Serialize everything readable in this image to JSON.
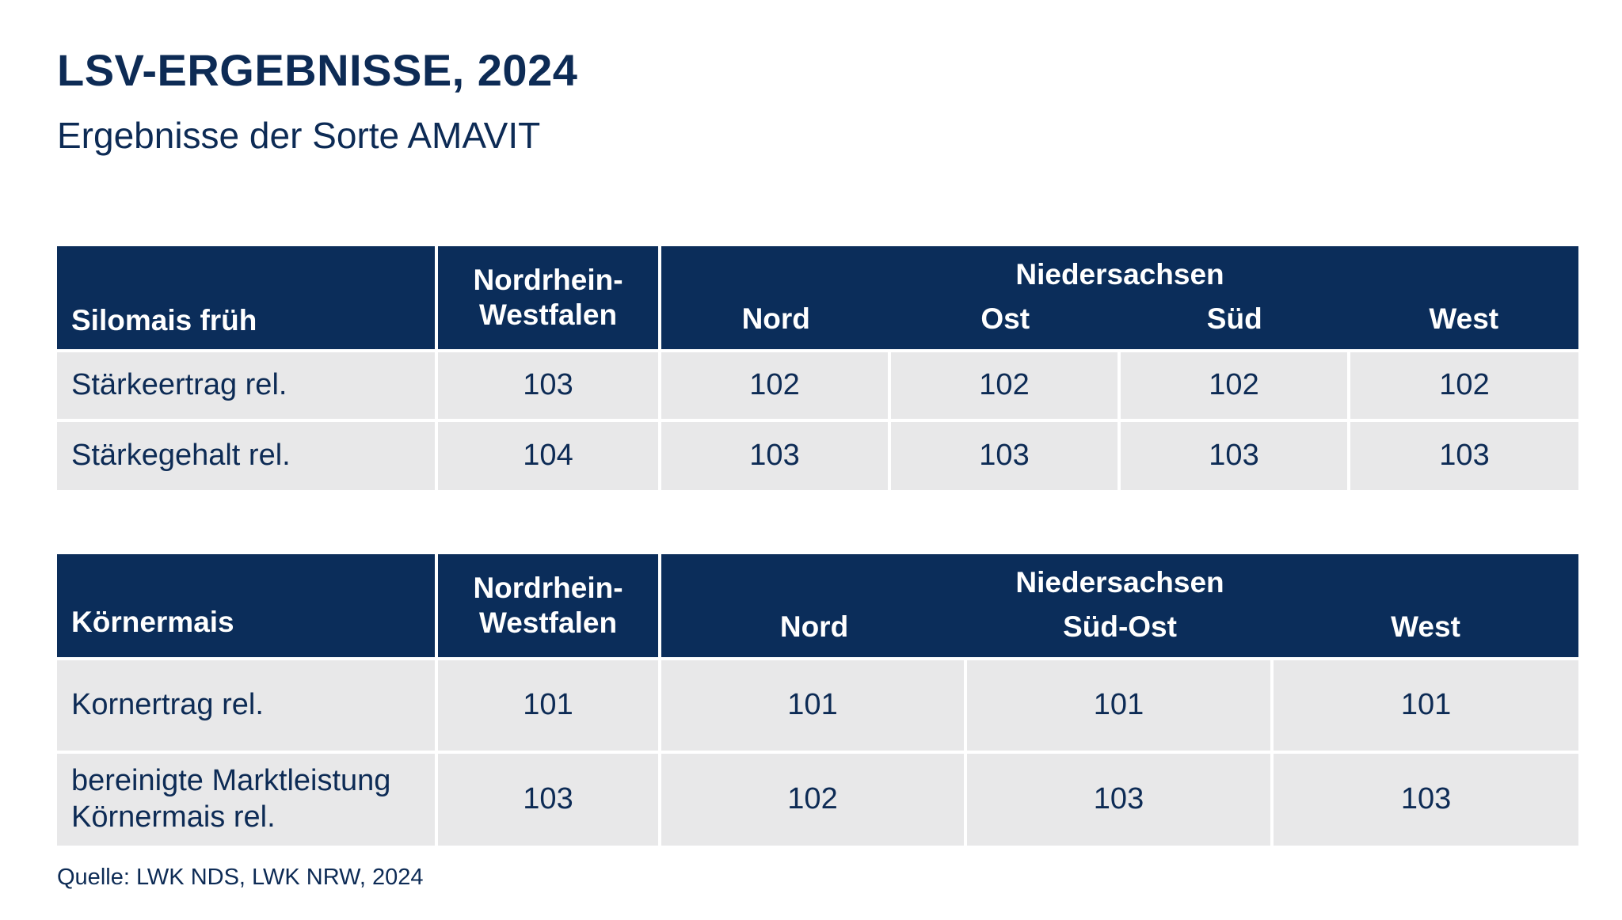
{
  "title": "LSV-ERGEBNISSE, 2024",
  "subtitle": "Ergebnisse der Sorte AMAVIT",
  "colors": {
    "header_bg": "#0b2d5a",
    "cell_bg": "#e8e8e9",
    "text": "#0d2b55"
  },
  "table1": {
    "corner": "Silomais früh",
    "nrw_line1": "Nordrhein-",
    "nrw_line2": "Westfalen",
    "region": "Niedersachsen",
    "subregions": [
      "Nord",
      "Ost",
      "Süd",
      "West"
    ],
    "rows": [
      {
        "label": "Stärkeertrag rel.",
        "values": [
          "103",
          "102",
          "102",
          "102",
          "102"
        ]
      },
      {
        "label": "Stärkegehalt rel.",
        "values": [
          "104",
          "103",
          "103",
          "103",
          "103"
        ]
      }
    ]
  },
  "table2": {
    "corner": "Körnermais",
    "nrw_line1": "Nordrhein-",
    "nrw_line2": "Westfalen",
    "region": "Niedersachsen",
    "subregions": [
      "Nord",
      "Süd-Ost",
      "West"
    ],
    "rows": [
      {
        "label": "Kornertrag rel.",
        "values": [
          "101",
          "101",
          "101",
          "101"
        ]
      },
      {
        "label_line1": "bereinigte Marktleistung",
        "label_line2": "Körnermais rel.",
        "values": [
          "103",
          "102",
          "103",
          "103"
        ]
      }
    ]
  },
  "source": "Quelle: LWK NDS, LWK NRW, 2024"
}
